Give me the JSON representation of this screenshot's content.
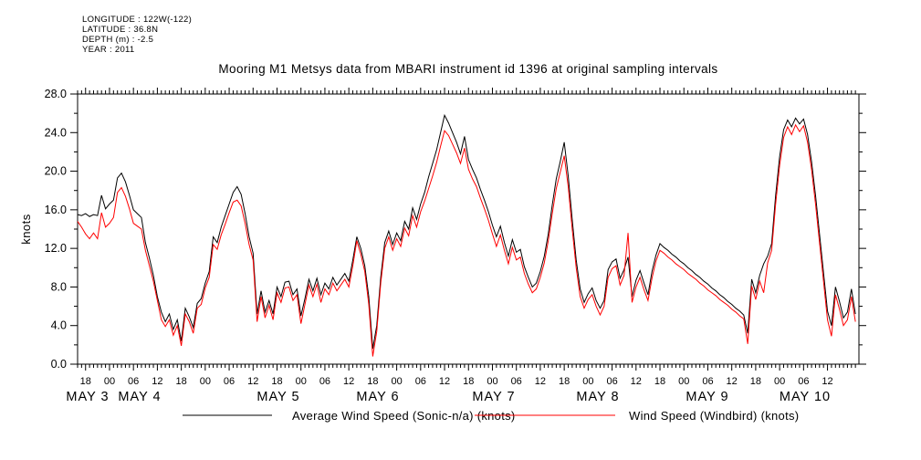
{
  "meta": {
    "lines": [
      "LONGITUDE : 122W(-122)",
      "LATITUDE : 36.8N",
      "DEPTH (m) : -2.5",
      "YEAR : 2011"
    ]
  },
  "title": "Mooring M1 Metsys data from MBARI instrument id 1396 at original sampling intervals",
  "chart_data": {
    "type": "line",
    "title": "Mooring M1 Metsys data from MBARI instrument id 1396 at original sampling intervals",
    "xlabel": "",
    "ylabel": "knots",
    "ylim": [
      0.0,
      28.0
    ],
    "y_major_tick_labels": [
      "0.0",
      "4.0",
      "8.0",
      "12.0",
      "16.0",
      "20.0",
      "24.0",
      "28.0"
    ],
    "y_minor_step": 2.0,
    "grid": "off",
    "legend_position": "bottom",
    "x_axis": {
      "start": "MAY 2 16:00 2011",
      "end": "MAY 10 20:00 2011",
      "minor_tick_step_hours": 1,
      "major_tick_step_hours": 6,
      "first_major_tick_offset_hours": 2,
      "major_tick_labels": [
        "18",
        "00",
        "06",
        "12",
        "18",
        "00",
        "06",
        "12",
        "18",
        "00",
        "06",
        "12",
        "18",
        "00",
        "06",
        "12",
        "18",
        "00",
        "06",
        "12",
        "18",
        "00",
        "06",
        "12",
        "18",
        "00",
        "06",
        "12",
        "18",
        "00",
        "06",
        "12"
      ],
      "day_labels": [
        "MAY  3",
        "MAY  4",
        "MAY  5",
        "MAY  6",
        "MAY  7",
        "MAY  8",
        "MAY  9",
        "MAY 10"
      ]
    },
    "data_gap": {
      "from": "MAY 8 ~18:00",
      "to": "MAY 9 ~15:00",
      "note": "gap rendered as straight connecting segment"
    },
    "series": [
      {
        "name": "Average Wind Speed (Sonic-n/a) (knots)",
        "color": "#000000",
        "step_hours": 1,
        "start_offset_hours": 0,
        "values": [
          15.5,
          15.4,
          15.6,
          15.3,
          15.5,
          15.4,
          17.5,
          16.1,
          16.6,
          17.0,
          19.3,
          19.8,
          18.9,
          17.5,
          16.0,
          15.6,
          15.2,
          12.6,
          11.0,
          9.2,
          7.0,
          5.4,
          4.4,
          5.2,
          3.6,
          4.6,
          2.4,
          5.8,
          4.9,
          3.8,
          6.3,
          6.8,
          8.4,
          9.6,
          13.2,
          12.6,
          14.2,
          15.4,
          16.6,
          17.8,
          18.4,
          17.6,
          15.6,
          13.2,
          11.5,
          5.2,
          7.6,
          5.4,
          6.6,
          5.2,
          8.0,
          7.0,
          8.5,
          8.6,
          7.2,
          7.8,
          5.0,
          6.8,
          8.8,
          7.6,
          8.9,
          7.2,
          8.4,
          7.8,
          9.0,
          8.2,
          8.8,
          9.4,
          8.6,
          10.8,
          13.2,
          12.0,
          10.2,
          7.0,
          1.6,
          4.0,
          9.0,
          12.6,
          13.8,
          12.4,
          13.6,
          12.8,
          14.8,
          14.0,
          16.2,
          15.0,
          16.6,
          17.8,
          19.4,
          20.8,
          22.2,
          24.0,
          25.8,
          25.0,
          24.0,
          23.0,
          21.8,
          23.6,
          21.2,
          20.2,
          19.3,
          18.1,
          17.0,
          15.8,
          14.4,
          13.2,
          14.3,
          12.6,
          11.2,
          12.9,
          11.6,
          11.9,
          10.1,
          9.0,
          8.0,
          8.4,
          9.6,
          11.2,
          13.5,
          16.5,
          19.2,
          21.0,
          23.0,
          19.5,
          15.0,
          10.8,
          7.8,
          6.4,
          7.3,
          7.9,
          6.6,
          5.8,
          6.6,
          9.8,
          10.6,
          10.9,
          8.9,
          9.8,
          11.1,
          7.0,
          8.7,
          9.7,
          8.4,
          7.2,
          9.6,
          11.3,
          12.5,
          12.1,
          11.8,
          11.4,
          11.1,
          10.7,
          10.4,
          10.0,
          9.7,
          9.3,
          9.0,
          8.6,
          8.3,
          7.9,
          7.6,
          7.2,
          6.9,
          6.5,
          6.2,
          5.8,
          5.5,
          5.1,
          3.2,
          8.8,
          7.4,
          9.2,
          10.4,
          11.2,
          12.5,
          17.5,
          21.5,
          24.3,
          25.3,
          24.6,
          25.5,
          24.9,
          25.4,
          23.8,
          21.0,
          17.5,
          13.5,
          9.5,
          5.5,
          4.0,
          8.0,
          6.5,
          4.8,
          5.4,
          7.8,
          5.2
        ]
      },
      {
        "name": "Wind Speed (Windbird) (knots)",
        "color": "#ff0000",
        "step_hours": 1,
        "start_offset_hours": 0,
        "values": [
          14.8,
          14.2,
          13.5,
          13.0,
          13.6,
          13.0,
          15.7,
          14.2,
          14.6,
          15.2,
          17.8,
          18.3,
          17.4,
          16.1,
          14.6,
          14.3,
          14.0,
          11.8,
          10.2,
          8.6,
          6.6,
          4.6,
          3.9,
          4.6,
          3.0,
          4.0,
          1.9,
          5.2,
          4.4,
          3.2,
          5.8,
          6.2,
          7.9,
          9.0,
          12.4,
          11.9,
          13.4,
          14.5,
          15.7,
          16.8,
          17.0,
          16.4,
          14.6,
          12.4,
          10.8,
          4.4,
          7.0,
          4.8,
          6.1,
          4.6,
          7.4,
          6.4,
          7.9,
          8.0,
          6.6,
          7.2,
          4.2,
          6.2,
          8.2,
          7.0,
          8.3,
          6.4,
          7.8,
          7.2,
          8.4,
          7.6,
          8.2,
          8.8,
          8.0,
          10.2,
          12.8,
          11.4,
          9.6,
          6.2,
          0.8,
          3.4,
          8.4,
          12.0,
          13.2,
          11.8,
          13.0,
          12.2,
          14.1,
          13.3,
          15.4,
          14.2,
          15.8,
          16.9,
          18.2,
          19.5,
          20.9,
          22.6,
          24.2,
          23.7,
          22.8,
          21.9,
          20.8,
          22.4,
          20.2,
          19.2,
          18.4,
          17.2,
          16.1,
          14.9,
          13.5,
          12.2,
          13.4,
          11.8,
          10.4,
          12.1,
          10.8,
          11.1,
          9.4,
          8.3,
          7.4,
          7.8,
          9.0,
          10.5,
          12.8,
          15.6,
          18.2,
          19.9,
          21.6,
          18.4,
          14.0,
          10.0,
          7.0,
          5.8,
          6.7,
          7.2,
          6.0,
          5.1,
          6.0,
          9.0,
          9.9,
          10.2,
          8.2,
          9.2,
          13.6,
          6.4,
          8.0,
          9.0,
          7.7,
          6.6,
          8.9,
          10.7,
          11.8,
          11.5,
          11.1,
          10.8,
          10.4,
          10.1,
          9.8,
          9.4,
          9.1,
          8.8,
          8.4,
          8.1,
          7.7,
          7.4,
          7.1,
          6.7,
          6.4,
          6.1,
          5.7,
          5.4,
          5.0,
          4.7,
          2.1,
          8.1,
          6.7,
          8.6,
          7.4,
          10.5,
          11.8,
          16.6,
          20.6,
          23.5,
          24.6,
          23.8,
          24.8,
          24.1,
          24.7,
          23.0,
          20.2,
          16.6,
          12.6,
          8.6,
          4.6,
          2.9,
          7.2,
          5.7,
          4.0,
          4.6,
          7.0,
          4.4
        ]
      }
    ]
  },
  "legend": {
    "entries": [
      {
        "label": "Average Wind Speed (Sonic-n/a) (knots)",
        "color": "#000000"
      },
      {
        "label": "Wind Speed (Windbird) (knots)",
        "color": "#ff0000"
      }
    ]
  }
}
